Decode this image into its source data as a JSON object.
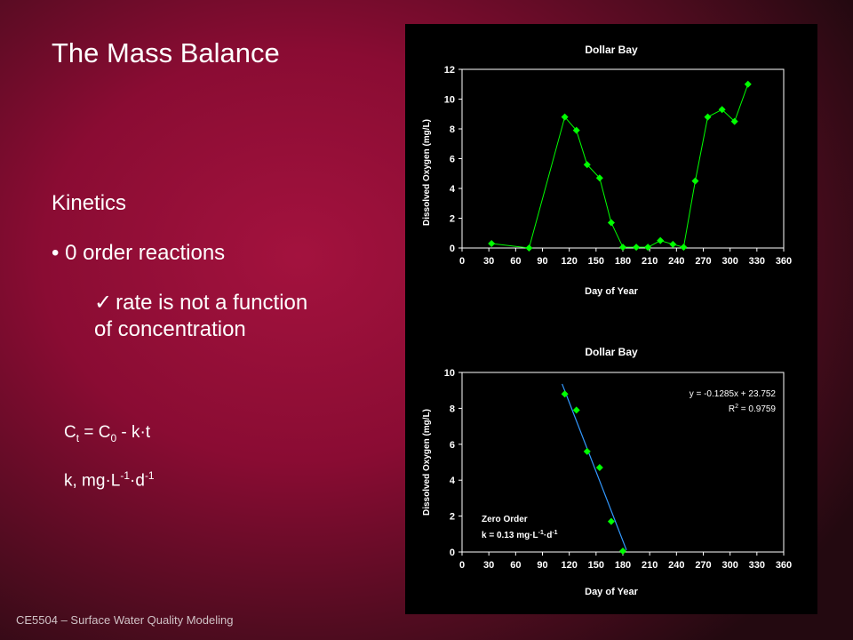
{
  "slide": {
    "title": "The Mass Balance",
    "section": "Kinetics",
    "bullet": "• 0 order reactions",
    "check_mark": "✓",
    "check_line1": "rate is not a function",
    "check_line2": "of concentration",
    "eq_c": "C",
    "eq_t": "t",
    "eq_eq": " = C",
    "eq_0": "0",
    "eq_rest": " - k·t",
    "unit_k": "k, mg·L",
    "unit_exp1": "-1",
    "unit_dot": "·d",
    "unit_exp2": "-1",
    "footer": "CE5504 – Surface Water Quality Modeling"
  },
  "chart_data": [
    {
      "type": "line",
      "title": "Dollar Bay",
      "xlabel": "Day of Year",
      "ylabel": "Dissolved Oxygen (mg/L)",
      "xlim": [
        0,
        360
      ],
      "ylim": [
        0,
        12
      ],
      "xticks": [
        0,
        30,
        60,
        90,
        120,
        150,
        180,
        210,
        240,
        270,
        300,
        330,
        360
      ],
      "yticks": [
        0,
        2,
        4,
        6,
        8,
        10,
        12
      ],
      "grid": false,
      "series": [
        {
          "color": "#00ff00",
          "x": [
            33,
            75,
            115,
            128,
            140,
            154,
            167,
            180,
            195,
            208,
            222,
            236,
            248,
            261,
            275,
            291,
            305,
            320
          ],
          "y": [
            0.3,
            0.0,
            8.8,
            7.9,
            5.6,
            4.7,
            1.7,
            0.05,
            0.05,
            0.05,
            0.5,
            0.25,
            0.05,
            4.5,
            8.8,
            9.3,
            8.5,
            11.0
          ],
          "markers_only": false
        }
      ]
    },
    {
      "type": "scatter",
      "title": "Dollar Bay",
      "xlabel": "Day of Year",
      "ylabel": "Dissolved Oxygen (mg/L)",
      "xlim": [
        0,
        360
      ],
      "ylim": [
        0,
        10
      ],
      "xticks": [
        0,
        30,
        60,
        90,
        120,
        150,
        180,
        210,
        240,
        270,
        300,
        330,
        360
      ],
      "yticks": [
        0,
        2,
        4,
        6,
        8,
        10
      ],
      "grid": false,
      "series": [
        {
          "color": "#00ff00",
          "x": [
            115,
            128,
            140,
            154,
            167,
            180
          ],
          "y": [
            8.8,
            7.9,
            5.6,
            4.7,
            1.7,
            0.05
          ],
          "markers_only": true
        }
      ],
      "trendline": {
        "color": "#3399ff",
        "slope": -0.1285,
        "intercept": 23.752,
        "x_range": [
          112,
          184
        ]
      },
      "equation_text": "y = -0.1285x + 23.752",
      "r2_text": "R",
      "r2_sup": "2",
      "r2_value": " = 0.9759",
      "annotation_line1": "Zero Order",
      "annotation_line2_pre": "k = 0.13 mg·L",
      "annotation_exp1": "-1",
      "annotation_mid": "·d",
      "annotation_exp2": "-1"
    }
  ]
}
